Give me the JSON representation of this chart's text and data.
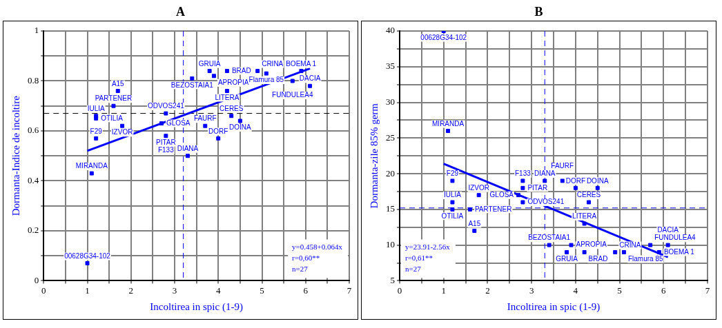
{
  "chart_data": [
    {
      "type": "scatter",
      "title": "A",
      "xlabel": "Incoltirea in spic (1-9)",
      "ylabel": "Dormanta-Indice de incoltire",
      "marker": "square",
      "grid": true,
      "legend": false,
      "xlim": [
        0,
        7
      ],
      "ylim": [
        0,
        1
      ],
      "xticks": [
        0,
        {
          "value": 0.5,
          "label": null
        },
        1,
        {
          "value": 1.5,
          "label": null
        },
        2,
        {
          "value": 2.5,
          "label": null
        },
        3,
        {
          "value": 3.5,
          "label": null
        },
        4,
        {
          "value": 4.5,
          "label": null
        },
        5,
        {
          "value": 5.5,
          "label": null
        },
        6,
        {
          "value": 6.5,
          "label": null
        },
        7
      ],
      "yticks": [
        0,
        {
          "value": 0.1,
          "label": null
        },
        0.2,
        {
          "value": 0.3,
          "label": null
        },
        0.4,
        {
          "value": 0.5,
          "label": null
        },
        0.6,
        {
          "value": 0.7,
          "label": null
        },
        0.8,
        {
          "value": 0.9,
          "label": null
        },
        1
      ],
      "series": [
        {
          "type": "scatter",
          "color": "#0000ff",
          "x": [
            1.0,
            1.1,
            1.2,
            1.2,
            1.2,
            1.7,
            1.6,
            1.8,
            2.8,
            2.7,
            2.8,
            null,
            3.3,
            3.4,
            3.8,
            3.9,
            4.2,
            4.9,
            5.1,
            5.9,
            5.7,
            6.1,
            4.2,
            4.3,
            4.5,
            3.7,
            4.0
          ],
          "values": [
            0.07,
            0.43,
            0.57,
            0.66,
            0.65,
            0.76,
            0.7,
            0.62,
            0.67,
            0.63,
            0.58,
            null,
            0.5,
            0.81,
            0.84,
            0.82,
            0.84,
            0.84,
            0.83,
            0.84,
            0.8,
            0.78,
            0.76,
            0.66,
            0.64,
            0.62,
            0.57
          ]
        },
        {
          "type": "line",
          "color": "#0000ff",
          "marker": "none",
          "x": [
            1.0,
            6.1
          ],
          "values": [
            0.52,
            0.85
          ]
        }
      ],
      "ref_lines": [
        {
          "axis": "x",
          "value": 3.2,
          "color": "#0000ff",
          "line_style": "dashed"
        },
        {
          "axis": "y",
          "value": 0.67,
          "color": "#000000",
          "line_style": "dashed"
        }
      ],
      "annotations": [
        {
          "text": "00628G34-102",
          "x": 1.0,
          "y": 0.07
        },
        {
          "text": "MIRANDA",
          "x": 1.1,
          "y": 0.43
        },
        {
          "text": "F29",
          "x": 1.2,
          "y": 0.57
        },
        {
          "text": "IULIA",
          "x": 1.2,
          "y": 0.66
        },
        {
          "text": "OTILIA",
          "x": 1.2,
          "y": 0.65
        },
        {
          "text": "A15",
          "x": 1.7,
          "y": 0.76
        },
        {
          "text": "PARTENER",
          "x": 1.6,
          "y": 0.7
        },
        {
          "text": "IZVOR",
          "x": 1.8,
          "y": 0.62
        },
        {
          "text": "ODVOS241",
          "x": 2.8,
          "y": 0.67
        },
        {
          "text": "GLOSA",
          "x": 2.7,
          "y": 0.63
        },
        {
          "text": "PITAR",
          "x": 2.8,
          "y": 0.58
        },
        {
          "text": "F133",
          "x": 2.8,
          "y": 0.58
        },
        {
          "text": "DIANA",
          "x": 3.3,
          "y": 0.5
        },
        {
          "text": "BEZOSTAIA1",
          "x": 3.4,
          "y": 0.81
        },
        {
          "text": "GRUIA",
          "x": 3.8,
          "y": 0.84
        },
        {
          "text": "APROPIA",
          "x": 3.9,
          "y": 0.82
        },
        {
          "text": "BRAD",
          "x": 4.2,
          "y": 0.84
        },
        {
          "text": "CRINA",
          "x": 4.9,
          "y": 0.84
        },
        {
          "text": "Flamura 85",
          "x": 5.1,
          "y": 0.83
        },
        {
          "text": "BOEMA 1",
          "x": 5.9,
          "y": 0.84
        },
        {
          "text": "FUNDULEA4",
          "x": 5.7,
          "y": 0.8
        },
        {
          "text": "DACIA",
          "x": 6.1,
          "y": 0.78
        },
        {
          "text": "LITERA",
          "x": 4.2,
          "y": 0.76
        },
        {
          "text": "CERES",
          "x": 4.3,
          "y": 0.66
        },
        {
          "text": "DOINA",
          "x": 4.5,
          "y": 0.64
        },
        {
          "text": "FAURF",
          "x": 3.7,
          "y": 0.62
        },
        {
          "text": "DORF",
          "x": 4.0,
          "y": 0.57
        },
        "y=0.458+0.064x",
        "r=0,60**",
        "n=27"
      ]
    },
    {
      "type": "scatter",
      "title": "B",
      "xlabel": "Incoltirea in spic (1-9)",
      "ylabel": "Dormanta-zile 85% germ",
      "marker": "square",
      "grid": true,
      "legend": false,
      "xlim": [
        0,
        7
      ],
      "ylim": [
        5,
        40
      ],
      "xticks": [
        0,
        {
          "value": 0.5,
          "label": null
        },
        1,
        {
          "value": 1.5,
          "label": null
        },
        2,
        {
          "value": 2.5,
          "label": null
        },
        3,
        {
          "value": 3.5,
          "label": null
        },
        4,
        {
          "value": 4.5,
          "label": null
        },
        5,
        {
          "value": 5.5,
          "label": null
        },
        6,
        {
          "value": 6.5,
          "label": null
        },
        7
      ],
      "yticks": [
        5,
        {
          "value": 7.5,
          "label": null
        },
        10,
        {
          "value": 12.5,
          "label": null
        },
        15,
        {
          "value": 17.5,
          "label": null
        },
        20,
        {
          "value": 22.5,
          "label": null
        },
        25,
        {
          "value": 27.5,
          "label": null
        },
        30,
        {
          "value": 32.5,
          "label": null
        },
        35,
        {
          "value": 37.5,
          "label": null
        },
        40
      ],
      "series": [
        {
          "type": "scatter",
          "color": "#0000ff",
          "x": [
            1.0,
            1.1,
            1.2,
            1.2,
            1.2,
            1.7,
            1.6,
            1.8,
            2.8,
            2.7,
            2.8,
            2.8,
            3.3,
            3.4,
            3.8,
            3.9,
            4.2,
            4.9,
            5.1,
            5.9,
            5.7,
            6.1,
            4.2,
            4.3,
            4.5,
            3.7,
            4.0
          ],
          "values": [
            40,
            26,
            19,
            16,
            15,
            12,
            15,
            17,
            16,
            17,
            18,
            19,
            19,
            10,
            9,
            10,
            9,
            9,
            9,
            9,
            10,
            10,
            13,
            16,
            18,
            19,
            18
          ]
        },
        {
          "type": "line",
          "color": "#0000ff",
          "marker": "none",
          "x": [
            1.0,
            6.1
          ],
          "values": [
            21.4,
            8.3
          ]
        }
      ],
      "ref_lines": [
        {
          "axis": "x",
          "value": 3.3,
          "color": "#0000ff",
          "line_style": "dashed"
        },
        {
          "axis": "y",
          "value": 15.2,
          "color": "#0000ff",
          "line_style": "dashed"
        }
      ],
      "annotations": [
        {
          "text": "00628G34-102",
          "x": 1.0,
          "y": 40
        },
        {
          "text": "MIRANDA",
          "x": 1.1,
          "y": 26
        },
        {
          "text": "F29",
          "x": 1.2,
          "y": 19
        },
        {
          "text": "IULIA",
          "x": 1.2,
          "y": 16
        },
        {
          "text": "OTILIA",
          "x": 1.2,
          "y": 15
        },
        {
          "text": "A15",
          "x": 1.7,
          "y": 12
        },
        {
          "text": "PARTENER",
          "x": 1.6,
          "y": 15
        },
        {
          "text": "IZVOR",
          "x": 1.8,
          "y": 17
        },
        {
          "text": "ODVOS241",
          "x": 2.8,
          "y": 16
        },
        {
          "text": "GLOSA",
          "x": 2.7,
          "y": 17
        },
        {
          "text": "PITAR",
          "x": 2.8,
          "y": 18
        },
        {
          "text": "F133",
          "x": 2.8,
          "y": 19
        },
        {
          "text": "DIANA",
          "x": 3.3,
          "y": 19
        },
        {
          "text": "BEZOSTAIA1",
          "x": 3.4,
          "y": 10
        },
        {
          "text": "GRUIA",
          "x": 3.8,
          "y": 9
        },
        {
          "text": "APROPIA",
          "x": 3.9,
          "y": 10
        },
        {
          "text": "BRAD",
          "x": 4.2,
          "y": 9
        },
        {
          "text": "CRINA",
          "x": 4.9,
          "y": 9
        },
        {
          "text": "Flamura 85",
          "x": 5.1,
          "y": 9
        },
        {
          "text": "BOEMA 1",
          "x": 5.9,
          "y": 9
        },
        {
          "text": "FUNDULEA4",
          "x": 5.7,
          "y": 10
        },
        {
          "text": "DACIA",
          "x": 6.1,
          "y": 10
        },
        {
          "text": "LITERA",
          "x": 4.2,
          "y": 13
        },
        {
          "text": "CERES",
          "x": 4.3,
          "y": 16
        },
        {
          "text": "DOINA",
          "x": 4.5,
          "y": 18
        },
        {
          "text": "FAURF",
          "x": 3.7,
          "y": 19
        },
        {
          "text": "DORF",
          "x": 4.0,
          "y": 18
        },
        "y=23.91-2.56x",
        "r=0,61**",
        "n=27"
      ]
    }
  ]
}
